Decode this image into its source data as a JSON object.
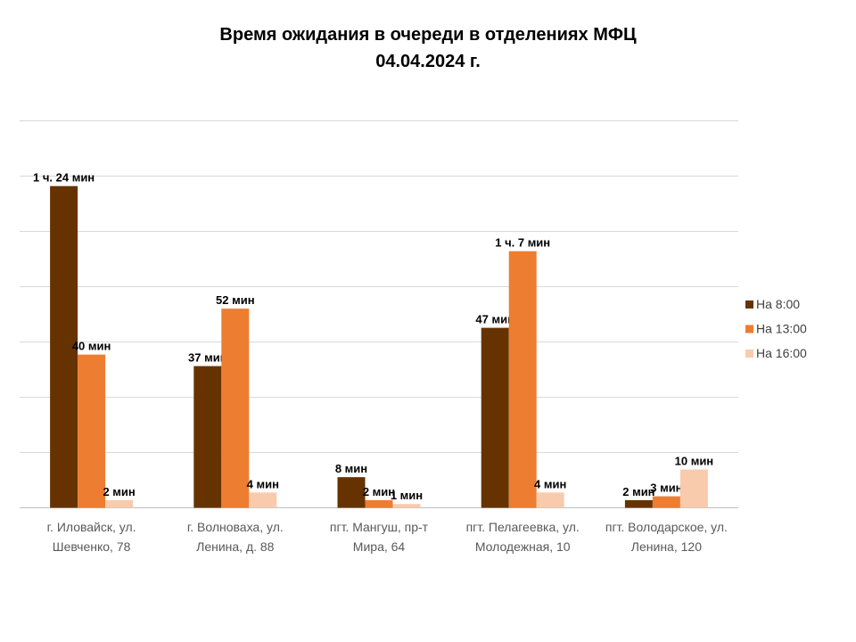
{
  "title": "Время ожидания в очереди в отделениях МФЦ",
  "subtitle": "04.04.2024   г.",
  "chart_data": {
    "type": "bar",
    "categories": [
      [
        "г. Иловайск, ул.",
        "Шевченко, 78"
      ],
      [
        "г. Волноваха, ул.",
        "Ленина, д. 88"
      ],
      [
        "пгт. Мангуш, пр-т",
        "Мира, 64"
      ],
      [
        "пгт. Пелагеевка, ул.",
        "Молодежная, 10"
      ],
      [
        "пгт. Володарское, ул.",
        "Ленина, 120"
      ]
    ],
    "series": [
      {
        "name": "На 8:00",
        "color": "#663300",
        "values": [
          84,
          37,
          8,
          47,
          2
        ],
        "labels": [
          "1 ч. 24 мин",
          "37 мин",
          "8 мин",
          "47 мин",
          "2 мин"
        ]
      },
      {
        "name": "На 13:00",
        "color": "#ED7D31",
        "values": [
          40,
          52,
          2,
          67,
          3
        ],
        "labels": [
          "40 мин",
          "52 мин",
          "2 мин",
          "1 ч. 7 мин",
          "3 мин"
        ]
      },
      {
        "name": "На 16:00",
        "color": "#F8CBAD",
        "values": [
          2,
          4,
          1,
          4,
          10
        ],
        "labels": [
          "2 мин",
          "4 мин",
          "1 мин",
          "4 мин",
          "10 мин"
        ]
      }
    ],
    "ylim": [
      0,
      95
    ],
    "grid": true,
    "legend": "right"
  }
}
